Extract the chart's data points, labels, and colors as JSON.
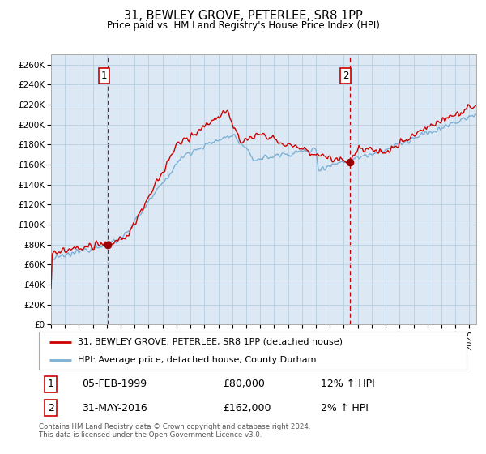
{
  "title": "31, BEWLEY GROVE, PETERLEE, SR8 1PP",
  "subtitle": "Price paid vs. HM Land Registry's House Price Index (HPI)",
  "outer_bg_color": "#ffffff",
  "plot_bg_color": "#dce9f5",
  "red_line_color": "#cc0000",
  "blue_line_color": "#7bafd4",
  "marker_color": "#990000",
  "dashed_line_color": "#cc0000",
  "ylim": [
    0,
    270000
  ],
  "yticks": [
    0,
    20000,
    40000,
    60000,
    80000,
    100000,
    120000,
    140000,
    160000,
    180000,
    200000,
    220000,
    240000,
    260000
  ],
  "sale1_date": 1999.09,
  "sale1_price": 80000,
  "sale1_label": "1",
  "sale2_date": 2016.42,
  "sale2_price": 162000,
  "sale2_label": "2",
  "legend_line1": "31, BEWLEY GROVE, PETERLEE, SR8 1PP (detached house)",
  "legend_line2": "HPI: Average price, detached house, County Durham",
  "table_row1": [
    "1",
    "05-FEB-1999",
    "£80,000",
    "12% ↑ HPI"
  ],
  "table_row2": [
    "2",
    "31-MAY-2016",
    "£162,000",
    "2% ↑ HPI"
  ],
  "footnote": "Contains HM Land Registry data © Crown copyright and database right 2024.\nThis data is licensed under the Open Government Licence v3.0.",
  "xstart": 1995.0,
  "xend": 2025.5
}
